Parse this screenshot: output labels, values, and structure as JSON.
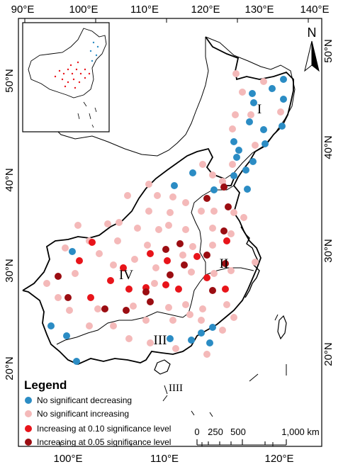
{
  "axes": {
    "top_labels": [
      "90°E",
      "100°E",
      "110°E",
      "120°E",
      "130°E",
      "140°E"
    ],
    "bottom_labels": [
      "100°E",
      "110°E",
      "120°E"
    ],
    "left_labels": [
      "50°N",
      "40°N",
      "30°N",
      "20°N"
    ],
    "right_labels": [
      "50°N",
      "40°N",
      "30°N",
      "20°N"
    ]
  },
  "north_arrow": {
    "label": "N"
  },
  "regions": [
    {
      "id": "I",
      "label": "I"
    },
    {
      "id": "II",
      "label": "II"
    },
    {
      "id": "III",
      "label": "III"
    },
    {
      "id": "IV",
      "label": "IV"
    },
    {
      "id": "IIII",
      "label": "IIII"
    }
  ],
  "legend": {
    "title": "Legend",
    "items": [
      {
        "label": "No significant decreasing",
        "color": "#2b8cc4"
      },
      {
        "label": "No significant increasing",
        "color": "#f4b9b9"
      },
      {
        "label": "Increasing at 0.10 significance level",
        "color": "#e8141a"
      },
      {
        "label": "Increasing at 0.05 significance level",
        "color": "#9b0d12"
      }
    ]
  },
  "scale_bar": {
    "labels": [
      "0",
      "250",
      "500",
      "1,000 km"
    ]
  },
  "stations": {
    "no_sig_decreasing": [
      [
        356,
        132
      ],
      [
        384,
        125
      ],
      [
        400,
        112
      ],
      [
        358,
        145
      ],
      [
        400,
        140
      ],
      [
        352,
        172
      ],
      [
        372,
        183
      ],
      [
        398,
        178
      ],
      [
        330,
        200
      ],
      [
        374,
        203
      ],
      [
        337,
        212
      ],
      [
        334,
        222
      ],
      [
        357,
        228
      ],
      [
        347,
        240
      ],
      [
        330,
        248
      ],
      [
        302,
        268
      ],
      [
        272,
        244
      ],
      [
        246,
        262
      ],
      [
        349,
        267
      ],
      [
        102,
        355
      ],
      [
        72,
        460
      ],
      [
        94,
        474
      ],
      [
        108,
        510
      ],
      [
        300,
        462
      ],
      [
        284,
        470
      ],
      [
        240,
        478
      ],
      [
        270,
        480
      ],
      [
        296,
        484
      ]
    ],
    "no_sig_increasing": [
      [
        333,
        104
      ],
      [
        372,
        115
      ],
      [
        342,
        130
      ],
      [
        332,
        162
      ],
      [
        354,
        162
      ],
      [
        396,
        158
      ],
      [
        360,
        205
      ],
      [
        328,
        182
      ],
      [
        328,
        232
      ],
      [
        314,
        256
      ],
      [
        300,
        247
      ],
      [
        286,
        232
      ],
      [
        210,
        260
      ],
      [
        222,
        276
      ],
      [
        180,
        276
      ],
      [
        244,
        278
      ],
      [
        262,
        286
      ],
      [
        240,
        300
      ],
      [
        284,
        298
      ],
      [
        210,
        298
      ],
      [
        302,
        298
      ],
      [
        330,
        300
      ],
      [
        344,
        307
      ],
      [
        168,
        314
      ],
      [
        110,
        318
      ],
      [
        152,
        316
      ],
      [
        238,
        318
      ],
      [
        194,
        322
      ],
      [
        224,
        324
      ],
      [
        262,
        324
      ],
      [
        300,
        322
      ],
      [
        326,
        330
      ],
      [
        126,
        340
      ],
      [
        166,
        340
      ],
      [
        208,
        346
      ],
      [
        272,
        348
      ],
      [
        300,
        346
      ],
      [
        92,
        350
      ],
      [
        140,
        358
      ],
      [
        258,
        360
      ],
      [
        190,
        366
      ],
      [
        360,
        370
      ],
      [
        160,
        374
      ],
      [
        220,
        378
      ],
      [
        270,
        384
      ],
      [
        326,
        382
      ],
      [
        302,
        386
      ],
      [
        106,
        386
      ],
      [
        66,
        400
      ],
      [
        218,
        400
      ],
      [
        82,
        420
      ],
      [
        98,
        438
      ],
      [
        138,
        436
      ],
      [
        188,
        432
      ],
      [
        238,
        434
      ],
      [
        262,
        430
      ],
      [
        286,
        436
      ],
      [
        320,
        430
      ],
      [
        330,
        448
      ],
      [
        284,
        452
      ],
      [
        126,
        460
      ],
      [
        160,
        460
      ],
      [
        206,
        452
      ],
      [
        244,
        452
      ],
      [
        268,
        444
      ],
      [
        314,
        466
      ],
      [
        182,
        478
      ],
      [
        212,
        484
      ],
      [
        248,
        492
      ],
      [
        292,
        500
      ]
    ],
    "inc_010": [
      [
        130,
        342
      ],
      [
        112,
        368
      ],
      [
        320,
        340
      ],
      [
        212,
        358
      ],
      [
        278,
        362
      ],
      [
        236,
        368
      ],
      [
        174,
        378
      ],
      [
        156,
        396
      ],
      [
        292,
        392
      ],
      [
        182,
        408
      ],
      [
        234,
        402
      ],
      [
        206,
        406
      ],
      [
        252,
        408
      ],
      [
        318,
        408
      ],
      [
        128,
        420
      ]
    ],
    "inc_005": [
      [
        316,
        264
      ],
      [
        292,
        280
      ],
      [
        322,
        292
      ],
      [
        316,
        326
      ],
      [
        254,
        344
      ],
      [
        234,
        352
      ],
      [
        260,
        374
      ],
      [
        292,
        360
      ],
      [
        82,
        390
      ],
      [
        240,
        388
      ],
      [
        318,
        372
      ],
      [
        300,
        410
      ],
      [
        206,
        412
      ],
      [
        96,
        420
      ],
      [
        148,
        436
      ],
      [
        178,
        438
      ],
      [
        212,
        426
      ]
    ]
  }
}
